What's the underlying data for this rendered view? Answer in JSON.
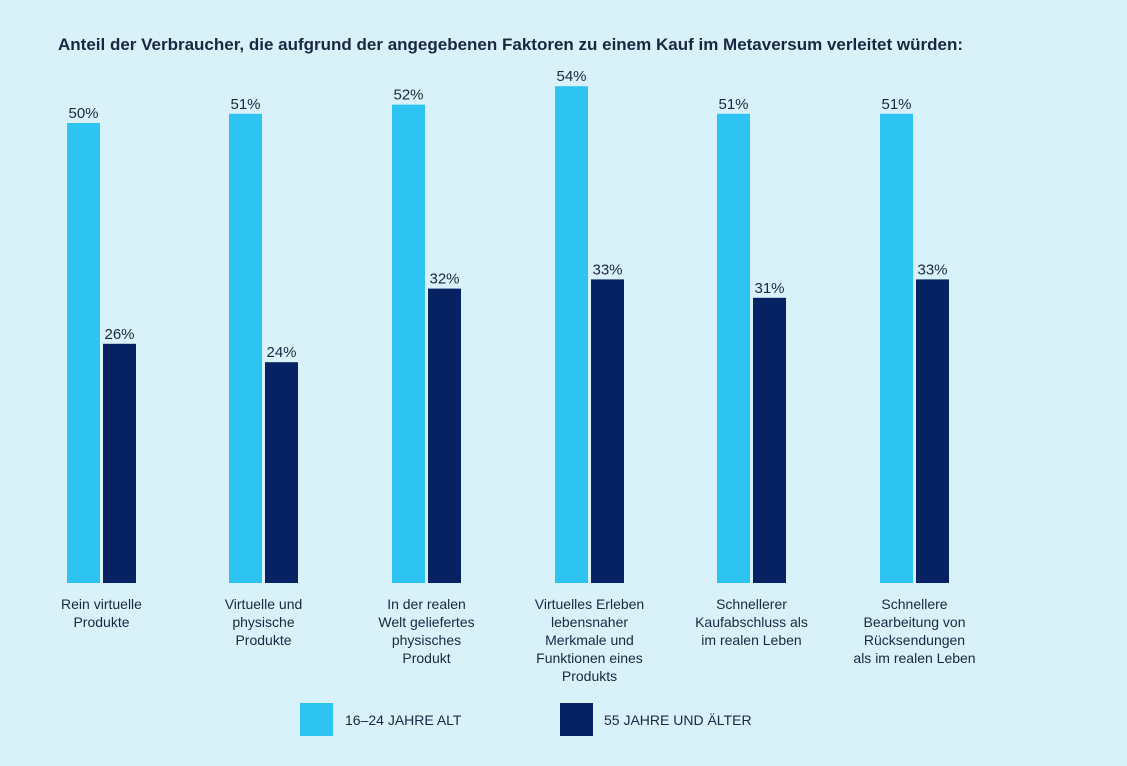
{
  "chart_data": {
    "type": "bar",
    "title": "Anteil der Verbraucher, die aufgrund der angegebenen Faktoren zu einem Kauf im Metaversum verleitet würden:",
    "categories": [
      [
        "Rein virtuelle",
        "Produkte"
      ],
      [
        "Virtuelle und",
        "physische",
        "Produkte"
      ],
      [
        "In der realen",
        "Welt geliefertes",
        "physisches",
        "Produkt"
      ],
      [
        "Virtuelles Erleben",
        "lebensnaher",
        "Merkmale und",
        "Funktionen eines",
        "Produkts"
      ],
      [
        "Schnellerer",
        "Kaufabschluss als",
        "im realen Leben"
      ],
      [
        "Schnellere",
        "Bearbeitung von",
        "Rücksendungen",
        "als im realen Leben"
      ]
    ],
    "series": [
      {
        "name": "16–24 JAHRE ALT",
        "color": "#2ec4f1",
        "values": [
          50,
          51,
          52,
          54,
          51,
          51
        ],
        "labels": [
          "50%",
          "51%",
          "52%",
          "54%",
          "51%",
          "51%"
        ]
      },
      {
        "name": "55 JAHRE UND ÄLTER",
        "color": "#062263",
        "values": [
          26,
          24,
          32,
          33,
          31,
          33
        ],
        "labels": [
          "26%",
          "24%",
          "32%",
          "33%",
          "31%",
          "33%"
        ]
      }
    ],
    "legend_position": "bottom",
    "grid": false,
    "ylim": [
      0,
      54
    ]
  }
}
